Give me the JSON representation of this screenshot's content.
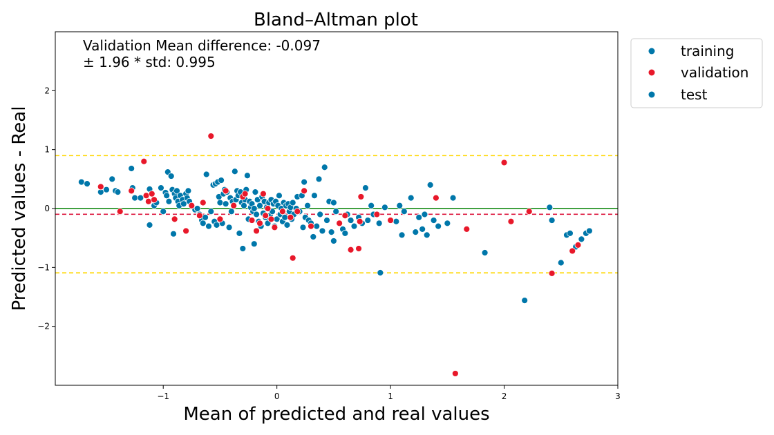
{
  "chart_data": {
    "type": "scatter",
    "title": "Bland–Altman plot",
    "xlabel": "Mean of predicted and real values",
    "ylabel": "Predicted values - Real",
    "xlim": [
      -1.95,
      3.0
    ],
    "ylim": [
      -3.0,
      3.0
    ],
    "x_ticks": [
      -1,
      0,
      1,
      2,
      3
    ],
    "y_ticks": [
      -2,
      -1,
      0,
      1,
      2
    ],
    "x_tick_labels": [
      "−1",
      "0",
      "1",
      "2",
      "3"
    ],
    "y_tick_labels": [
      "−2",
      "−1",
      "0",
      "1",
      "2"
    ],
    "grid": false,
    "legend_position": "outside-top-right",
    "annotation_lines": [
      "Validation Mean difference: -0.097",
      "± 1.96 * std: 0.995"
    ],
    "reference_lines": [
      {
        "y": 0.0,
        "style": "solid",
        "color": "#008000"
      },
      {
        "y": -0.097,
        "style": "dashed",
        "color": "#dc143c"
      },
      {
        "y": 0.898,
        "style": "dashed",
        "color": "#ffd700"
      },
      {
        "y": -1.092,
        "style": "dashed",
        "color": "#ffd700"
      }
    ],
    "series": [
      {
        "name": "training",
        "color": "#0077aa",
        "points": [
          [
            -1.72,
            0.45
          ],
          [
            -1.67,
            0.42
          ],
          [
            -1.55,
            0.28
          ],
          [
            -1.5,
            0.32
          ],
          [
            -1.45,
            0.5
          ],
          [
            -1.42,
            0.3
          ],
          [
            -1.4,
            0.28
          ],
          [
            -1.28,
            0.68
          ],
          [
            -1.27,
            0.35
          ],
          [
            -1.25,
            0.18
          ],
          [
            -1.2,
            0.18
          ],
          [
            -1.12,
            0.33
          ],
          [
            -1.12,
            -0.28
          ],
          [
            -1.08,
            0.05
          ],
          [
            -1.06,
            0.1
          ],
          [
            -1.02,
            0.35
          ],
          [
            -1.0,
            -0.05
          ],
          [
            -0.98,
            0.27
          ],
          [
            -0.97,
            0.22
          ],
          [
            -0.96,
            0.62
          ],
          [
            -0.95,
            0.12
          ],
          [
            -0.93,
            0.55
          ],
          [
            -0.92,
            0.32
          ],
          [
            -0.91,
            -0.43
          ],
          [
            -0.9,
            0.25
          ],
          [
            -0.89,
            0.18
          ],
          [
            -0.88,
            0.3
          ],
          [
            -0.87,
            0.12
          ],
          [
            -0.86,
            0.05
          ],
          [
            -0.85,
            0.22
          ],
          [
            -0.83,
            0.15
          ],
          [
            -0.82,
            0.08
          ],
          [
            -0.8,
            0.25
          ],
          [
            -0.79,
            0.18
          ],
          [
            -0.78,
            0.3
          ],
          [
            -0.77,
            0.12
          ],
          [
            -0.75,
            0.05
          ],
          [
            -0.72,
            -0.02
          ],
          [
            -0.7,
            0.0
          ],
          [
            -0.68,
            -0.1
          ],
          [
            -0.66,
            -0.2
          ],
          [
            -0.65,
            -0.25
          ],
          [
            -0.63,
            -0.15
          ],
          [
            -0.62,
            0.58
          ],
          [
            -0.6,
            -0.3
          ],
          [
            -0.58,
            -0.05
          ],
          [
            -0.56,
            0.4
          ],
          [
            -0.55,
            -0.22
          ],
          [
            -0.54,
            0.42
          ],
          [
            -0.53,
            -0.28
          ],
          [
            -0.52,
            0.45
          ],
          [
            -0.51,
            0.2
          ],
          [
            -0.5,
            0.1
          ],
          [
            -0.49,
            0.48
          ],
          [
            -0.48,
            -0.25
          ],
          [
            -0.47,
            0.25
          ],
          [
            -0.46,
            0.32
          ],
          [
            -0.45,
            0.08
          ],
          [
            -0.44,
            0.28
          ],
          [
            -0.42,
            -0.32
          ],
          [
            -0.41,
            0.18
          ],
          [
            -0.4,
            -0.05
          ],
          [
            -0.39,
            0.12
          ],
          [
            -0.37,
            0.63
          ],
          [
            -0.36,
            0.15
          ],
          [
            -0.35,
            0.3
          ],
          [
            -0.34,
            0.22
          ],
          [
            -0.33,
            -0.42
          ],
          [
            -0.32,
            0.28
          ],
          [
            -0.31,
            0.1
          ],
          [
            -0.3,
            -0.68
          ],
          [
            -0.29,
            0.05
          ],
          [
            -0.28,
            0.15
          ],
          [
            -0.27,
            0.32
          ],
          [
            -0.26,
            0.56
          ],
          [
            -0.25,
            -0.18
          ],
          [
            -0.24,
            0.12
          ],
          [
            -0.23,
            0.02
          ],
          [
            -0.22,
            0.08
          ],
          [
            -0.21,
            -0.05
          ],
          [
            -0.2,
            -0.6
          ],
          [
            -0.19,
            0.28
          ],
          [
            -0.18,
            -0.1
          ],
          [
            -0.17,
            0.15
          ],
          [
            -0.16,
            -0.22
          ],
          [
            -0.15,
            0.05
          ],
          [
            -0.14,
            -0.3
          ],
          [
            -0.13,
            0.2
          ],
          [
            -0.12,
            -0.08
          ],
          [
            -0.11,
            0.12
          ],
          [
            -0.1,
            -0.15
          ],
          [
            -0.09,
            0.02
          ],
          [
            -0.08,
            -0.25
          ],
          [
            -0.07,
            0.1
          ],
          [
            -0.06,
            -0.12
          ],
          [
            -0.05,
            0.15
          ],
          [
            -0.04,
            -0.05
          ],
          [
            -0.03,
            0.08
          ],
          [
            -0.02,
            -0.3
          ],
          [
            -0.01,
            0.12
          ],
          [
            0.0,
            -0.18
          ],
          [
            0.01,
            0.05
          ],
          [
            0.02,
            0.22
          ],
          [
            0.03,
            -0.1
          ],
          [
            0.04,
            0.0
          ],
          [
            0.05,
            -0.22
          ],
          [
            0.06,
            0.1
          ],
          [
            0.07,
            -0.15
          ],
          [
            0.08,
            0.05
          ],
          [
            0.09,
            -0.28
          ],
          [
            0.1,
            0.08
          ],
          [
            0.11,
            -0.05
          ],
          [
            0.12,
            0.02
          ],
          [
            0.13,
            -0.18
          ],
          [
            0.14,
            0.1
          ],
          [
            0.15,
            -0.1
          ],
          [
            0.17,
            0.0
          ],
          [
            0.18,
            0.2
          ],
          [
            0.2,
            -0.05
          ],
          [
            0.22,
            0.22
          ],
          [
            0.23,
            -0.32
          ],
          [
            0.24,
            0.45
          ],
          [
            0.25,
            -0.15
          ],
          [
            0.27,
            0.05
          ],
          [
            0.28,
            -0.2
          ],
          [
            0.3,
            -0.25
          ],
          [
            0.32,
            -0.48
          ],
          [
            0.33,
            0.22
          ],
          [
            0.35,
            -0.3
          ],
          [
            0.37,
            0.5
          ],
          [
            0.38,
            -0.1
          ],
          [
            0.4,
            -0.38
          ],
          [
            0.42,
            0.7
          ],
          [
            0.44,
            -0.2
          ],
          [
            0.46,
            0.12
          ],
          [
            0.48,
            -0.4
          ],
          [
            0.5,
            -0.55
          ],
          [
            0.52,
            -0.05
          ],
          [
            0.55,
            -0.25
          ],
          [
            0.58,
            -0.35
          ],
          [
            0.6,
            -0.42
          ],
          [
            0.62,
            -0.1
          ],
          [
            0.65,
            -0.2
          ],
          [
            0.68,
            -0.3
          ],
          [
            0.72,
            -0.15
          ],
          [
            0.75,
            -0.25
          ],
          [
            0.78,
            0.35
          ],
          [
            0.8,
            -0.2
          ],
          [
            0.83,
            0.05
          ],
          [
            0.85,
            -0.1
          ],
          [
            0.9,
            -0.25
          ],
          [
            0.95,
            0.02
          ],
          [
            1.05,
            -0.22
          ],
          [
            1.08,
            0.05
          ],
          [
            1.1,
            -0.45
          ],
          [
            1.12,
            -0.05
          ],
          [
            1.18,
            0.18
          ],
          [
            1.22,
            -0.4
          ],
          [
            1.25,
            -0.15
          ],
          [
            1.28,
            -0.35
          ],
          [
            1.3,
            -0.1
          ],
          [
            1.32,
            -0.45
          ],
          [
            1.35,
            0.4
          ],
          [
            1.38,
            -0.2
          ],
          [
            1.42,
            -0.3
          ],
          [
            1.5,
            -0.25
          ],
          [
            1.55,
            0.18
          ],
          [
            1.83,
            -0.75
          ],
          [
            2.18,
            -1.56
          ],
          [
            2.4,
            0.02
          ],
          [
            2.42,
            -0.2
          ],
          [
            2.5,
            -0.92
          ],
          [
            2.55,
            -0.45
          ],
          [
            2.58,
            -0.42
          ],
          [
            2.63,
            -0.65
          ],
          [
            2.68,
            -0.52
          ],
          [
            2.72,
            -0.42
          ],
          [
            2.75,
            -0.38
          ]
        ]
      },
      {
        "name": "validation",
        "color": "#e8182a",
        "points": [
          [
            -1.55,
            0.37
          ],
          [
            -1.38,
            -0.05
          ],
          [
            -1.28,
            0.3
          ],
          [
            -1.17,
            0.8
          ],
          [
            -1.15,
            0.22
          ],
          [
            -1.13,
            0.12
          ],
          [
            -1.1,
            0.25
          ],
          [
            -1.08,
            0.15
          ],
          [
            -0.9,
            -0.18
          ],
          [
            -0.8,
            -0.38
          ],
          [
            -0.75,
            0.05
          ],
          [
            -0.68,
            -0.12
          ],
          [
            -0.65,
            0.1
          ],
          [
            -0.58,
            1.23
          ],
          [
            -0.5,
            -0.18
          ],
          [
            -0.45,
            0.3
          ],
          [
            -0.38,
            0.05
          ],
          [
            -0.3,
            0.2
          ],
          [
            -0.28,
            0.25
          ],
          [
            -0.22,
            -0.2
          ],
          [
            -0.18,
            -0.38
          ],
          [
            -0.15,
            -0.25
          ],
          [
            -0.12,
            0.25
          ],
          [
            -0.1,
            -0.12
          ],
          [
            -0.08,
            0.0
          ],
          [
            -0.05,
            -0.18
          ],
          [
            -0.02,
            -0.32
          ],
          [
            0.05,
            -0.05
          ],
          [
            0.12,
            -0.15
          ],
          [
            0.14,
            -0.84
          ],
          [
            0.18,
            -0.05
          ],
          [
            0.24,
            0.3
          ],
          [
            0.3,
            -0.3
          ],
          [
            0.55,
            -0.25
          ],
          [
            0.6,
            -0.12
          ],
          [
            0.65,
            -0.7
          ],
          [
            0.72,
            -0.68
          ],
          [
            0.73,
            -0.22
          ],
          [
            0.74,
            0.2
          ],
          [
            0.88,
            -0.1
          ],
          [
            1.0,
            -0.2
          ],
          [
            1.4,
            0.18
          ],
          [
            1.57,
            -2.8
          ],
          [
            1.67,
            -0.35
          ],
          [
            2.0,
            0.78
          ],
          [
            2.06,
            -0.22
          ],
          [
            2.22,
            -0.05
          ],
          [
            2.42,
            -1.1
          ],
          [
            2.6,
            -0.72
          ],
          [
            2.65,
            -0.62
          ]
        ]
      },
      {
        "name": "test",
        "color": "#0077aa",
        "points": [
          [
            0.91,
            -1.09
          ],
          [
            -0.2,
            0.0
          ],
          [
            0.5,
            0.1
          ]
        ]
      }
    ]
  },
  "legend": {
    "items": [
      "training",
      "validation",
      "test"
    ]
  }
}
